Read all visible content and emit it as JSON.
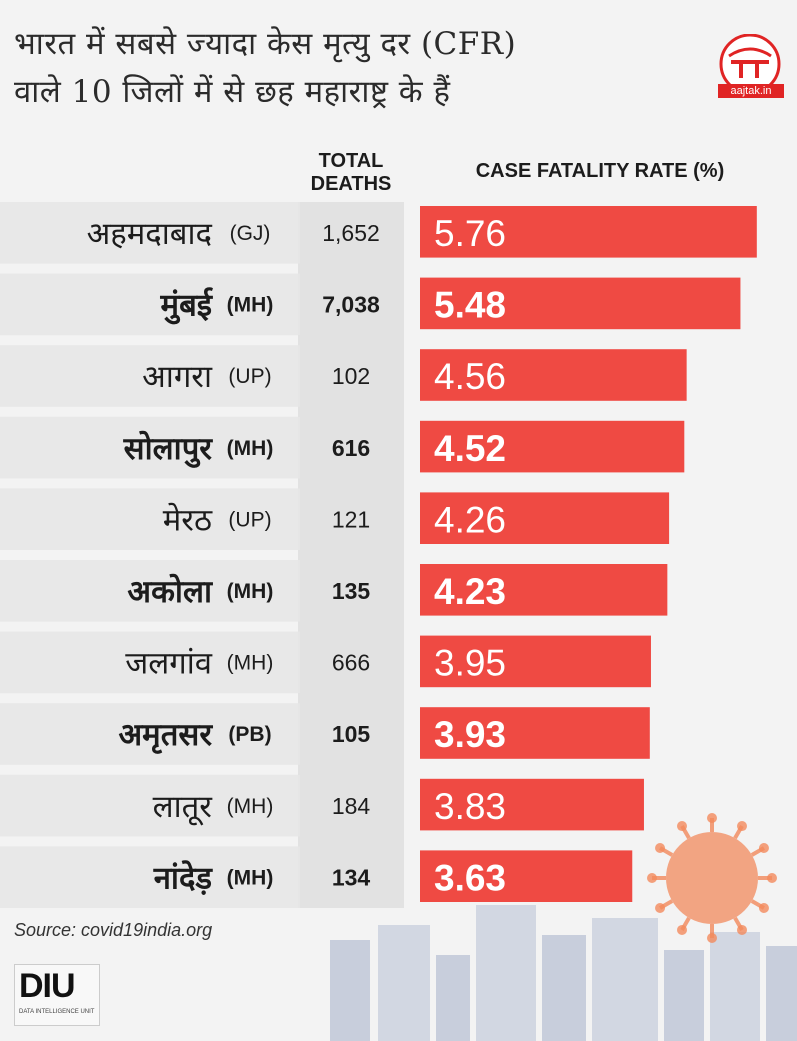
{
  "title_line1": "भारत में सबसे ज्यादा केस मृत्यु दर (CFR)",
  "title_line2": "वाले 10 जिलों में से छह महाराष्ट्र के हैं",
  "logo": {
    "name": "आज तक",
    "site": "aajtak.in"
  },
  "source": "Source: covid19india.org",
  "diu": {
    "label": "DIU",
    "sub": "DATA INTELLIGENCE UNIT"
  },
  "colors": {
    "bar": "#ef4a43",
    "band": "#e7e7e7",
    "deaths_col": "#e2e2e2",
    "virus": "#f28a5c",
    "city": "#b9c2d4"
  },
  "chart_data": {
    "type": "bar",
    "orientation": "horizontal",
    "header_deaths": "TOTAL DEATHS",
    "header_cfr": "CASE FATALITY RATE (%)",
    "categories": [
      "अहमदाबाद",
      "मुंबई",
      "आगरा",
      "सोलापुर",
      "मेरठ",
      "अकोला",
      "जलगांव",
      "अमृतसर",
      "लातूर",
      "नांदेड़"
    ],
    "states": [
      "(GJ)",
      "(MH)",
      "(UP)",
      "(MH)",
      "(UP)",
      "(MH)",
      "(MH)",
      "(PB)",
      "(MH)",
      "(MH)"
    ],
    "deaths": [
      "1,652",
      "7,038",
      "102",
      "616",
      "121",
      "135",
      "666",
      "105",
      "184",
      "134"
    ],
    "values": [
      5.76,
      5.48,
      4.56,
      4.52,
      4.26,
      4.23,
      3.95,
      3.93,
      3.83,
      3.63
    ],
    "value_labels": [
      "5.76",
      "5.48",
      "4.56",
      "4.52",
      "4.26",
      "4.23",
      "3.95",
      "3.93",
      "3.83",
      "3.63"
    ],
    "xlim": [
      0,
      5.9
    ]
  }
}
